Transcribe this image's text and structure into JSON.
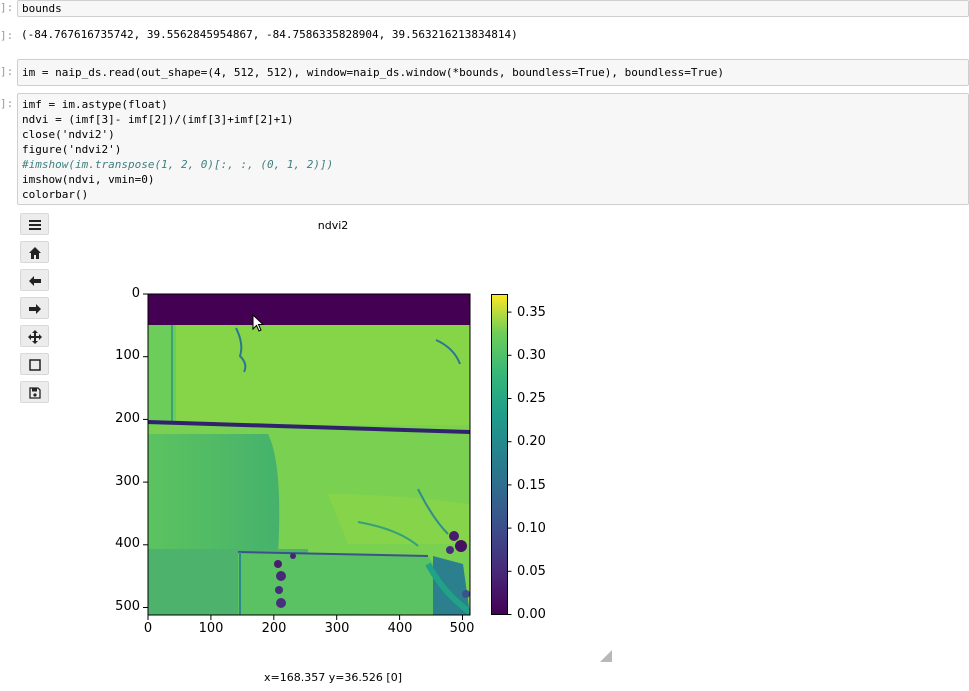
{
  "cells": [
    {
      "prompt": "]:",
      "code_plain": "bounds"
    },
    {
      "prompt": "]:",
      "output": "(-84.767616735742, 39.5562845954867, -84.7586335828904, 39.563216213834814)"
    },
    {
      "prompt": "]:",
      "line": "im = naip_ds.read(out_shape=(4, 512, 512), window=naip_ds.window(*bounds, boundless=True), boundless=True)"
    },
    {
      "prompt": "]:",
      "lines": [
        "imf = im.astype(float)",
        "ndvi = (imf[3]- imf[2])/(imf[3]+imf[2]+1)",
        "close('ndvi2')",
        "figure('ndvi2')",
        "#imshow(im.transpose(1, 2, 0)[:, :, (0, 1, 2)])",
        "imshow(ndvi, vmin=0)",
        "colorbar()"
      ]
    }
  ],
  "toolbar": [
    "menu-icon",
    "home-icon",
    "back-icon",
    "forward-icon",
    "pan-icon",
    "zoom-rect-icon",
    "save-icon"
  ],
  "figure": {
    "title": "ndvi2",
    "status": "x=168.357 y=36.526 [0]"
  },
  "chart_data": {
    "type": "heatmap",
    "title": "ndvi2",
    "x_ticks": [
      "0",
      "100",
      "200",
      "300",
      "400",
      "500"
    ],
    "y_ticks": [
      "0",
      "100",
      "200",
      "300",
      "400",
      "500"
    ],
    "xlim": [
      0,
      512
    ],
    "ylim": [
      512,
      0
    ],
    "colorbar": {
      "ticks": [
        "0.00",
        "0.05",
        "0.10",
        "0.15",
        "0.20",
        "0.25",
        "0.30",
        "0.35"
      ],
      "range": [
        0,
        0.37
      ],
      "colormap": "viridis"
    }
  }
}
